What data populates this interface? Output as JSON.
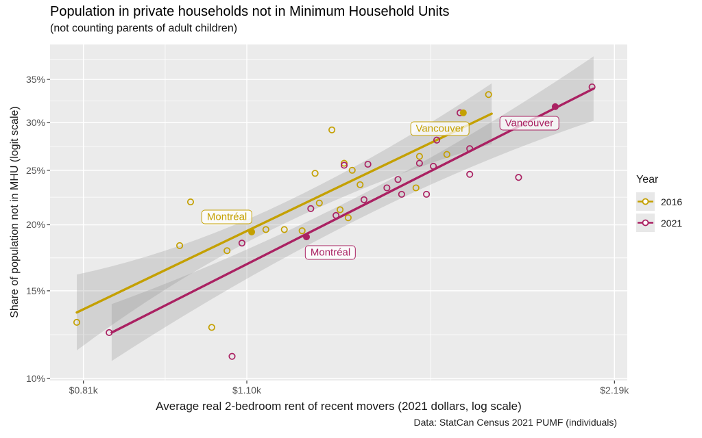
{
  "title": "Population in private households not in Minimum Household Units",
  "subtitle": "(not counting parents of adult children)",
  "caption": "Data: StatCan Census 2021 PUMF (individuals)",
  "colors": {
    "panel_bg": "#ebebeb",
    "gridline": "#ffffff",
    "band": "#8c8c8c",
    "band_opacity": 0.26,
    "tick_mark": "#333333",
    "tick_label": "#555555",
    "series_2016": "#c4a000",
    "series_2021": "#aa2162"
  },
  "chart_data": {
    "type": "scatter",
    "title": "Population in private households not in Minimum Household Units",
    "subtitle": "(not counting parents of adult children)",
    "caption": "Data: StatCan Census 2021 PUMF (individuals)",
    "x_axis": {
      "label": "Average real 2-bedroom rent of recent movers (2021 dollars, log scale)",
      "scale": "log",
      "unit": "thousand dollars",
      "ticks": [
        {
          "value": 0.81,
          "label": "$0.81k"
        },
        {
          "value": 1.1,
          "label": "$1.10k"
        },
        {
          "value": 2.19,
          "label": "$2.19k"
        }
      ],
      "minor_gridlines": [
        0.944,
        1.552
      ],
      "range": [
        0.76,
        2.24
      ],
      "grid": true
    },
    "y_axis": {
      "label": "Share of population not in MHU (logit scale)",
      "scale": "logit",
      "unit": "percent",
      "ticks": [
        {
          "value": 10,
          "label": "10%"
        },
        {
          "value": 15,
          "label": "15%"
        },
        {
          "value": 20,
          "label": "20%"
        },
        {
          "value": 25,
          "label": "25%"
        },
        {
          "value": 30,
          "label": "30%"
        },
        {
          "value": 35,
          "label": "35%"
        }
      ],
      "minor_gridlines": [
        12.28,
        17.35,
        22.43,
        27.43,
        32.45,
        37.47
      ],
      "range": [
        9.6,
        39.3
      ],
      "grid": true
    },
    "legend": {
      "title": "Year",
      "position": "right",
      "entries": [
        {
          "label": "2016",
          "color": "#c4a000"
        },
        {
          "label": "2021",
          "color": "#aa2162"
        }
      ]
    },
    "series": [
      {
        "name": "2016",
        "color": "#c4a000",
        "points": [
          [
            0.8,
            13.0
          ],
          [
            0.97,
            18.3
          ],
          [
            0.99,
            22.0
          ],
          [
            1.03,
            12.7
          ],
          [
            1.06,
            17.9
          ],
          [
            1.14,
            19.6
          ],
          [
            1.18,
            19.6
          ],
          [
            1.22,
            19.5
          ],
          [
            1.25,
            24.7
          ],
          [
            1.26,
            21.9
          ],
          [
            1.29,
            29.2
          ],
          [
            1.31,
            21.3
          ],
          [
            1.32,
            25.7
          ],
          [
            1.33,
            20.6
          ],
          [
            1.34,
            25.0
          ],
          [
            1.36,
            23.6
          ],
          [
            1.51,
            23.3
          ],
          [
            1.52,
            26.4
          ],
          [
            1.6,
            26.6
          ],
          [
            1.73,
            33.2
          ]
        ],
        "labeled_points": [
          {
            "city": "Montréal",
            "rent_k": 1.11,
            "pct": 19.4,
            "label_offset": [
              -36,
              -22
            ]
          },
          {
            "city": "Vancouver",
            "rent_k": 1.65,
            "pct": 31.1,
            "label_offset": [
              -34,
              23
            ]
          }
        ],
        "trend_line": {
          "rent_k_start": 0.8,
          "pct_start": 13.6,
          "rent_k_end": 1.74,
          "pct_end": 31.0
        },
        "confidence_band": {
          "halfwidth_logit_start": 0.2,
          "halfwidth_logit_mid": 0.055,
          "halfwidth_logit_end": 0.16
        }
      },
      {
        "name": "2021",
        "color": "#aa2162",
        "points": [
          [
            0.85,
            12.4
          ],
          [
            1.07,
            11.1
          ],
          [
            1.09,
            18.5
          ],
          [
            1.24,
            21.4
          ],
          [
            1.3,
            20.8
          ],
          [
            1.32,
            25.5
          ],
          [
            1.37,
            22.2
          ],
          [
            1.38,
            25.6
          ],
          [
            1.43,
            23.3
          ],
          [
            1.46,
            24.1
          ],
          [
            1.47,
            22.7
          ],
          [
            1.52,
            25.7
          ],
          [
            1.54,
            22.7
          ],
          [
            1.56,
            25.4
          ],
          [
            1.57,
            28.1
          ],
          [
            1.64,
            31.1
          ],
          [
            1.67,
            27.2
          ],
          [
            1.67,
            24.6
          ],
          [
            1.83,
            24.3
          ],
          [
            2.1,
            34.1
          ]
        ],
        "labeled_points": [
          {
            "city": "Montréal",
            "rent_k": 1.23,
            "pct": 19.0,
            "label_offset": [
              35,
              23
            ]
          },
          {
            "city": "Vancouver",
            "rent_k": 1.96,
            "pct": 31.8,
            "label_offset": [
              -38,
              24
            ]
          }
        ],
        "trend_line": {
          "rent_k_start": 0.854,
          "pct_start": 12.4,
          "rent_k_end": 2.106,
          "pct_end": 33.9
        },
        "confidence_band": {
          "halfwidth_logit_start": 0.15,
          "halfwidth_logit_mid": 0.06,
          "halfwidth_logit_end": 0.17
        }
      }
    ]
  }
}
